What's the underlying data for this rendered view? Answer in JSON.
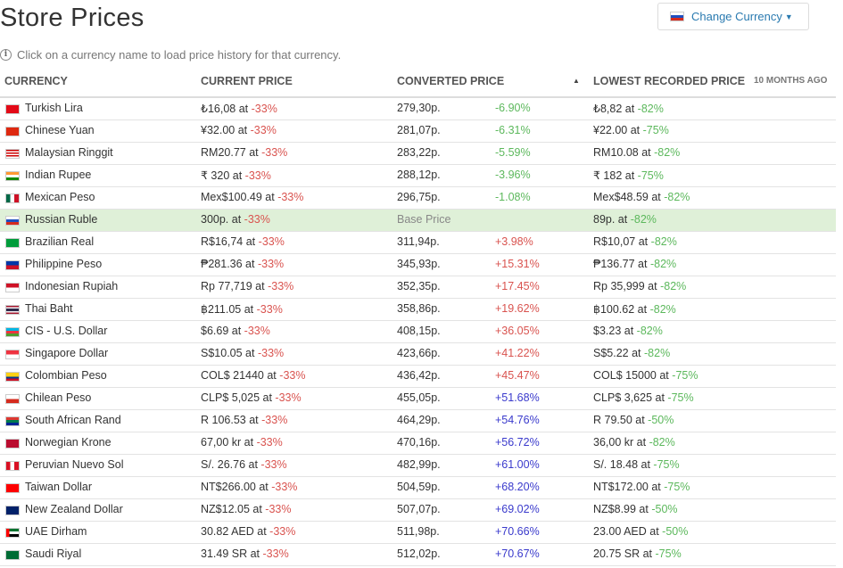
{
  "page": {
    "title": "Store Prices",
    "info_text": "Click on a currency name to load price history for that currency.",
    "change_currency_label": "Change Currency",
    "change_currency_flag": "flag-ru-icon"
  },
  "table": {
    "headers": {
      "currency": "CURRENCY",
      "current_price": "CURRENT PRICE",
      "converted_price": "CONVERTED PRICE",
      "lowest": "LOWEST RECORDED PRICE",
      "ago": "10 MONTHS AGO"
    },
    "rows": [
      {
        "flag": "flag-tr-icon",
        "name": "Turkish Lira",
        "price": "₺16,08 at",
        "price_pct": "-33%",
        "converted": "279,30p.",
        "conv_pct": "-6.90%",
        "conv_color": "green",
        "lowest": "₺8,82 at",
        "lowest_pct": "-82%"
      },
      {
        "flag": "flag-cn-icon",
        "name": "Chinese Yuan",
        "price": "¥32.00 at",
        "price_pct": "-33%",
        "converted": "281,07p.",
        "conv_pct": "-6.31%",
        "conv_color": "green",
        "lowest": "¥22.00 at",
        "lowest_pct": "-75%"
      },
      {
        "flag": "flag-my-icon",
        "name": "Malaysian Ringgit",
        "price": "RM20.77 at",
        "price_pct": "-33%",
        "converted": "283,22p.",
        "conv_pct": "-5.59%",
        "conv_color": "green",
        "lowest": "RM10.08 at",
        "lowest_pct": "-82%"
      },
      {
        "flag": "flag-in-icon",
        "name": "Indian Rupee",
        "price": "₹ 320 at",
        "price_pct": "-33%",
        "converted": "288,12p.",
        "conv_pct": "-3.96%",
        "conv_color": "green",
        "lowest": "₹ 182 at",
        "lowest_pct": "-75%"
      },
      {
        "flag": "flag-mx-icon",
        "name": "Mexican Peso",
        "price": "Mex$100.49 at",
        "price_pct": "-33%",
        "converted": "296,75p.",
        "conv_pct": "-1.08%",
        "conv_color": "green",
        "lowest": "Mex$48.59 at",
        "lowest_pct": "-82%"
      },
      {
        "flag": "flag-ru-icon",
        "name": "Russian Ruble",
        "price": "300p. at",
        "price_pct": "-33%",
        "converted": "Base Price",
        "conv_pct": "",
        "conv_color": "green",
        "lowest": "89p. at",
        "lowest_pct": "-82%",
        "base": true
      },
      {
        "flag": "flag-br-icon",
        "name": "Brazilian Real",
        "price": "R$16,74 at",
        "price_pct": "-33%",
        "converted": "311,94p.",
        "conv_pct": "+3.98%",
        "conv_color": "red",
        "lowest": "R$10,07 at",
        "lowest_pct": "-82%"
      },
      {
        "flag": "flag-ph-icon",
        "name": "Philippine Peso",
        "price": "₱281.36 at",
        "price_pct": "-33%",
        "converted": "345,93p.",
        "conv_pct": "+15.31%",
        "conv_color": "red",
        "lowest": "₱136.77 at",
        "lowest_pct": "-82%"
      },
      {
        "flag": "flag-id-icon",
        "name": "Indonesian Rupiah",
        "price": "Rp 77,719 at",
        "price_pct": "-33%",
        "converted": "352,35p.",
        "conv_pct": "+17.45%",
        "conv_color": "red",
        "lowest": "Rp 35,999 at",
        "lowest_pct": "-82%"
      },
      {
        "flag": "flag-th-icon",
        "name": "Thai Baht",
        "price": "฿211.05 at",
        "price_pct": "-33%",
        "converted": "358,86p.",
        "conv_pct": "+19.62%",
        "conv_color": "red",
        "lowest": "฿100.62 at",
        "lowest_pct": "-82%"
      },
      {
        "flag": "flag-az-icon",
        "name": "CIS - U.S. Dollar",
        "price": "$6.69 at",
        "price_pct": "-33%",
        "converted": "408,15p.",
        "conv_pct": "+36.05%",
        "conv_color": "red",
        "lowest": "$3.23 at",
        "lowest_pct": "-82%"
      },
      {
        "flag": "flag-sg-icon",
        "name": "Singapore Dollar",
        "price": "S$10.05 at",
        "price_pct": "-33%",
        "converted": "423,66p.",
        "conv_pct": "+41.22%",
        "conv_color": "red",
        "lowest": "S$5.22 at",
        "lowest_pct": "-82%"
      },
      {
        "flag": "flag-co-icon",
        "name": "Colombian Peso",
        "price": "COL$ 21440 at",
        "price_pct": "-33%",
        "converted": "436,42p.",
        "conv_pct": "+45.47%",
        "conv_color": "red",
        "lowest": "COL$ 15000 at",
        "lowest_pct": "-75%"
      },
      {
        "flag": "flag-cl-icon",
        "name": "Chilean Peso",
        "price": "CLP$ 5,025 at",
        "price_pct": "-33%",
        "converted": "455,05p.",
        "conv_pct": "+51.68%",
        "conv_color": "blue",
        "lowest": "CLP$ 3,625 at",
        "lowest_pct": "-75%"
      },
      {
        "flag": "flag-za-icon",
        "name": "South African Rand",
        "price": "R 106.53 at",
        "price_pct": "-33%",
        "converted": "464,29p.",
        "conv_pct": "+54.76%",
        "conv_color": "blue",
        "lowest": "R 79.50 at",
        "lowest_pct": "-50%"
      },
      {
        "flag": "flag-no-icon",
        "name": "Norwegian Krone",
        "price": "67,00 kr at",
        "price_pct": "-33%",
        "converted": "470,16p.",
        "conv_pct": "+56.72%",
        "conv_color": "blue",
        "lowest": "36,00 kr at",
        "lowest_pct": "-82%"
      },
      {
        "flag": "flag-pe-icon",
        "name": "Peruvian Nuevo Sol",
        "price": "S/. 26.76 at",
        "price_pct": "-33%",
        "converted": "482,99p.",
        "conv_pct": "+61.00%",
        "conv_color": "blue",
        "lowest": "S/. 18.48 at",
        "lowest_pct": "-75%"
      },
      {
        "flag": "flag-tw-icon",
        "name": "Taiwan Dollar",
        "price": "NT$266.00 at",
        "price_pct": "-33%",
        "converted": "504,59p.",
        "conv_pct": "+68.20%",
        "conv_color": "blue",
        "lowest": "NT$172.00 at",
        "lowest_pct": "-75%"
      },
      {
        "flag": "flag-nz-icon",
        "name": "New Zealand Dollar",
        "price": "NZ$12.05 at",
        "price_pct": "-33%",
        "converted": "507,07p.",
        "conv_pct": "+69.02%",
        "conv_color": "blue",
        "lowest": "NZ$8.99 at",
        "lowest_pct": "-50%"
      },
      {
        "flag": "flag-ae-icon",
        "name": "UAE Dirham",
        "price": "30.82 AED at",
        "price_pct": "-33%",
        "converted": "511,98p.",
        "conv_pct": "+70.66%",
        "conv_color": "blue",
        "lowest": "23.00 AED at",
        "lowest_pct": "-50%"
      },
      {
        "flag": "flag-sa-icon",
        "name": "Saudi Riyal",
        "price": "31.49 SR at",
        "price_pct": "-33%",
        "converted": "512,02p.",
        "conv_pct": "+70.67%",
        "conv_color": "blue",
        "lowest": "20.75 SR at",
        "lowest_pct": "-75%"
      }
    ]
  }
}
